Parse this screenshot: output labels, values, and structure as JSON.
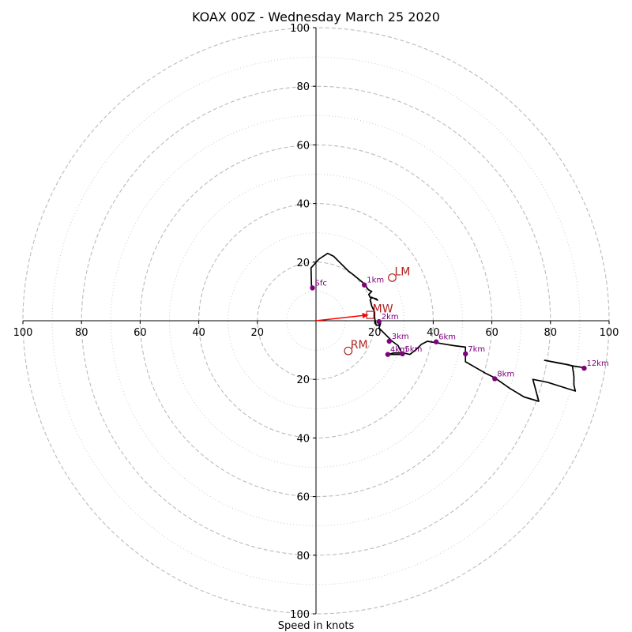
{
  "chart_data": {
    "type": "hodograph",
    "title": "KOAX 00Z - Wednesday March 25 2020",
    "xlabel": "Speed in knots",
    "ylabel": "",
    "xlim": [
      -100,
      100
    ],
    "ylim": [
      -100,
      100
    ],
    "rings_major": [
      20,
      40,
      60,
      80,
      100
    ],
    "rings_minor": [
      10,
      30,
      50,
      70,
      90
    ],
    "axis_ticks": {
      "x_right": [
        "20",
        "40",
        "60",
        "80",
        "100"
      ],
      "x_left": [
        "20",
        "40",
        "60",
        "80",
        "100"
      ],
      "y_up": [
        "20",
        "40",
        "60",
        "80",
        "100"
      ],
      "y_down": [
        "20",
        "40",
        "60",
        "80",
        "100"
      ]
    },
    "colors": {
      "trace": "#000000",
      "height_markers": "#800080",
      "storm_motion": "#b22222",
      "mean_wind_arrow": "#ff0000",
      "major_grid": "#bbbbbb",
      "minor_grid": "#cccccc"
    },
    "hodograph_trace": [
      [
        -1.5,
        11
      ],
      [
        -1.7,
        18
      ],
      [
        1,
        21
      ],
      [
        4,
        23
      ],
      [
        6,
        22
      ],
      [
        8,
        20
      ],
      [
        11,
        17
      ],
      [
        13,
        15.5
      ],
      [
        16,
        13
      ],
      [
        17,
        12
      ],
      [
        17.5,
        11
      ],
      [
        18,
        10.5
      ],
      [
        19,
        10
      ],
      [
        18,
        9
      ],
      [
        18.5,
        8
      ],
      [
        20.5,
        7.5
      ],
      [
        21,
        7
      ],
      [
        19,
        8
      ],
      [
        18.5,
        7
      ],
      [
        19,
        5
      ],
      [
        20,
        3
      ],
      [
        20,
        1
      ],
      [
        20.5,
        -1.5
      ],
      [
        21.5,
        -1.5
      ],
      [
        22,
        0
      ],
      [
        22,
        -1
      ],
      [
        21.5,
        -2.5
      ],
      [
        22,
        -3
      ],
      [
        23.5,
        -4.5
      ],
      [
        26,
        -7
      ],
      [
        28,
        -8.5
      ],
      [
        29.5,
        -11.5
      ],
      [
        24.5,
        -11.5
      ],
      [
        26.5,
        -11
      ],
      [
        30,
        -11
      ],
      [
        32,
        -11.5
      ],
      [
        34,
        -10
      ],
      [
        36,
        -8
      ],
      [
        38,
        -7
      ],
      [
        41,
        -7.5
      ],
      [
        44,
        -8
      ],
      [
        47,
        -8.5
      ],
      [
        51,
        -9
      ],
      [
        51,
        -14
      ],
      [
        58,
        -18
      ],
      [
        61,
        -19.5
      ],
      [
        66,
        -23
      ],
      [
        71,
        -26
      ],
      [
        76,
        -27.5
      ],
      [
        74,
        -20
      ],
      [
        79,
        -21
      ],
      [
        88.5,
        -24
      ],
      [
        88,
        -22
      ],
      [
        88,
        -19
      ],
      [
        87.5,
        -15.5
      ],
      [
        86,
        -15
      ],
      [
        83,
        -14.5
      ],
      [
        78,
        -13.5
      ],
      [
        83.5,
        -14.5
      ],
      [
        88,
        -15.5
      ],
      [
        91.5,
        -16
      ]
    ],
    "height_markers": [
      {
        "label": "Sfc",
        "u": -1.2,
        "v": 11.2
      },
      {
        "label": "1km",
        "u": 16.5,
        "v": 12.2
      },
      {
        "label": "2km",
        "u": 21.5,
        "v": -0.3
      },
      {
        "label": "3km",
        "u": 25,
        "v": -7
      },
      {
        "label": "4km",
        "u": 24.5,
        "v": -11.5
      },
      {
        "label": "5km",
        "u": 29.5,
        "v": -11.3
      },
      {
        "label": "6km",
        "u": 41,
        "v": -7.2
      },
      {
        "label": "7km",
        "u": 51,
        "v": -11.3
      },
      {
        "label": "8km",
        "u": 61,
        "v": -19.8
      },
      {
        "label": "12km",
        "u": 91.5,
        "v": -16.2
      }
    ],
    "storm_motions": [
      {
        "label": "LM",
        "u": 26,
        "v": 14.7
      },
      {
        "label": "RM",
        "u": 11,
        "v": -10.3
      },
      {
        "label": "MW",
        "u": 18.5,
        "v": 2
      }
    ],
    "mean_wind_arrow": {
      "u": 18,
      "v": 2
    }
  }
}
